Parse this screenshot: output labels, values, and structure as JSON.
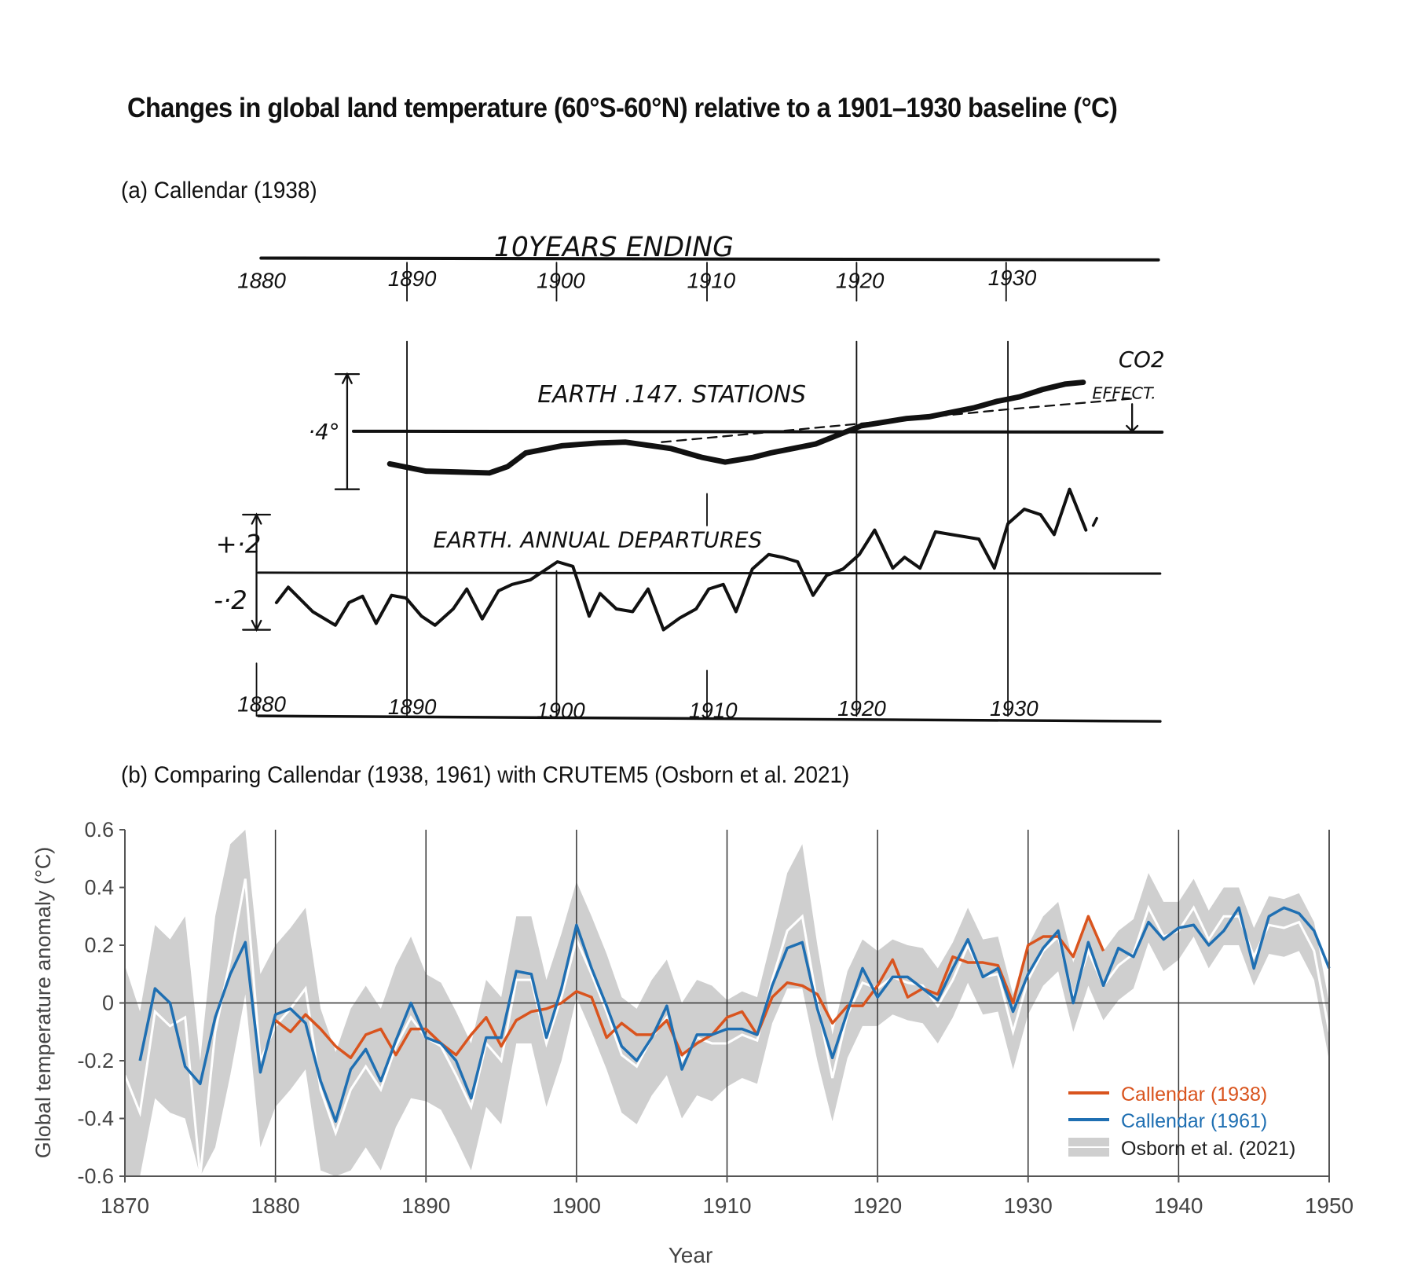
{
  "title": "Changes in global land temperature (60°S-60°N) relative to a 1901–1930 baseline (°C)",
  "panel_a": {
    "label": "(a) Callendar (1938)",
    "top_axis_title": "10YEARS ENDING",
    "top_ticks": [
      "1880",
      "1890",
      "1900",
      "1910",
      "1920",
      "1930"
    ],
    "bottom_ticks": [
      "1880",
      "1890",
      "1900",
      "1910",
      "1920",
      "1930"
    ],
    "curve1_label": "EARTH .147. STATIONS",
    "co2_label": "CO2",
    "effect_label": "EFFECT.",
    "scale_upper": "·4°",
    "curve2_label": "EARTH. ANNUAL DEPARTURES",
    "plus_label": "+·2",
    "minus_label": "-·2"
  },
  "panel_b": {
    "label": "(b) Comparing Callendar (1938, 1961) with CRUTEM5 (Osborn et al. 2021)"
  },
  "chart_data": {
    "type": "line",
    "xlabel": "Year",
    "ylabel": "Global temperature anomaly (°C)",
    "xlim": [
      1870,
      1950
    ],
    "ylim": [
      -0.6,
      0.6
    ],
    "xticks": [
      "1870",
      "1880",
      "1890",
      "1900",
      "1910",
      "1920",
      "1930",
      "1940",
      "1950"
    ],
    "yticks": [
      "0.6",
      "0.4",
      "0.2",
      "0",
      "-0.2",
      "-0.4",
      "-0.6"
    ],
    "grid": "vertical lines at decades, horizontal line at 0",
    "legend_position": "bottom-right",
    "colors": {
      "callendar_1938": "#d9541e",
      "callendar_1961": "#1f6fb2",
      "osborn_band": "#cfcfcf",
      "osborn_median": "#ffffff"
    },
    "series": [
      {
        "name": "Callendar (1938)",
        "x_start": 1880,
        "values": [
          -0.06,
          -0.1,
          -0.04,
          -0.09,
          -0.15,
          -0.19,
          -0.11,
          -0.09,
          -0.18,
          -0.09,
          -0.09,
          -0.14,
          -0.18,
          -0.11,
          -0.05,
          -0.15,
          -0.06,
          -0.03,
          -0.02,
          0.0,
          0.04,
          0.02,
          -0.12,
          -0.07,
          -0.11,
          -0.11,
          -0.06,
          -0.18,
          -0.14,
          -0.11,
          -0.05,
          -0.03,
          -0.11,
          0.02,
          0.07,
          0.06,
          0.03,
          -0.07,
          -0.01,
          -0.01,
          0.06,
          0.15,
          0.02,
          0.05,
          0.03,
          0.16,
          0.14,
          0.14,
          0.13,
          0.0,
          0.2,
          0.23,
          0.23,
          0.16,
          0.3,
          0.18
        ]
      },
      {
        "name": "Callendar (1961)",
        "x_start": 1871,
        "values": [
          -0.2,
          0.05,
          0.0,
          -0.22,
          -0.28,
          -0.05,
          0.1,
          0.21,
          -0.24,
          -0.04,
          -0.02,
          -0.07,
          -0.27,
          -0.41,
          -0.23,
          -0.16,
          -0.27,
          -0.13,
          0.0,
          -0.12,
          -0.14,
          -0.2,
          -0.33,
          -0.12,
          -0.12,
          0.11,
          0.1,
          -0.12,
          0.05,
          0.27,
          0.12,
          -0.01,
          -0.15,
          -0.2,
          -0.12,
          -0.01,
          -0.23,
          -0.11,
          -0.11,
          -0.09,
          -0.09,
          -0.11,
          0.06,
          0.19,
          0.21,
          -0.02,
          -0.19,
          -0.03,
          0.12,
          0.02,
          0.09,
          0.09,
          0.05,
          0.01,
          0.12,
          0.22,
          0.09,
          0.12,
          -0.03,
          0.1,
          0.19,
          0.25,
          0.0,
          0.21,
          0.06,
          0.19,
          0.16,
          0.28,
          0.22,
          0.26,
          0.27,
          0.2,
          0.25,
          0.33,
          0.12,
          0.3,
          0.33,
          0.31,
          0.25,
          0.12
        ]
      },
      {
        "name": "Osborn et al. (2021)",
        "x_start": 1870,
        "kind": "band",
        "median": [
          -0.25,
          -0.38,
          -0.03,
          -0.08,
          -0.05,
          -0.6,
          -0.1,
          0.15,
          0.43,
          -0.2,
          -0.08,
          -0.02,
          0.05,
          -0.3,
          -0.45,
          -0.3,
          -0.22,
          -0.3,
          -0.15,
          -0.05,
          -0.12,
          -0.15,
          -0.25,
          -0.36,
          -0.14,
          -0.2,
          0.08,
          0.08,
          -0.14,
          0.02,
          0.22,
          0.1,
          -0.03,
          -0.18,
          -0.22,
          -0.12,
          -0.05,
          -0.2,
          -0.12,
          -0.14,
          -0.14,
          -0.11,
          -0.13,
          0.08,
          0.25,
          0.3,
          0.0,
          -0.26,
          -0.04,
          0.07,
          0.05,
          0.09,
          0.07,
          0.06,
          -0.01,
          0.08,
          0.2,
          0.09,
          0.1,
          -0.1,
          0.08,
          0.18,
          0.23,
          0.02,
          0.18,
          0.06,
          0.13,
          0.17,
          0.33,
          0.23,
          0.25,
          0.33,
          0.22,
          0.3,
          0.3,
          0.16,
          0.27,
          0.26,
          0.28,
          0.18,
          -0.1
        ],
        "band_halfwidth": [
          0.38,
          0.35,
          0.3,
          0.3,
          0.35,
          0.4,
          0.4,
          0.4,
          0.4,
          0.3,
          0.28,
          0.28,
          0.28,
          0.28,
          0.28,
          0.28,
          0.28,
          0.28,
          0.28,
          0.28,
          0.22,
          0.22,
          0.22,
          0.22,
          0.22,
          0.22,
          0.22,
          0.22,
          0.22,
          0.22,
          0.2,
          0.2,
          0.2,
          0.2,
          0.2,
          0.2,
          0.2,
          0.2,
          0.2,
          0.2,
          0.15,
          0.15,
          0.15,
          0.15,
          0.2,
          0.25,
          0.2,
          0.15,
          0.15,
          0.15,
          0.13,
          0.13,
          0.13,
          0.13,
          0.13,
          0.13,
          0.13,
          0.13,
          0.13,
          0.13,
          0.12,
          0.12,
          0.12,
          0.12,
          0.12,
          0.12,
          0.12,
          0.12,
          0.12,
          0.12,
          0.1,
          0.1,
          0.1,
          0.1,
          0.1,
          0.1,
          0.1,
          0.1,
          0.1,
          0.1,
          0.1
        ]
      }
    ]
  }
}
